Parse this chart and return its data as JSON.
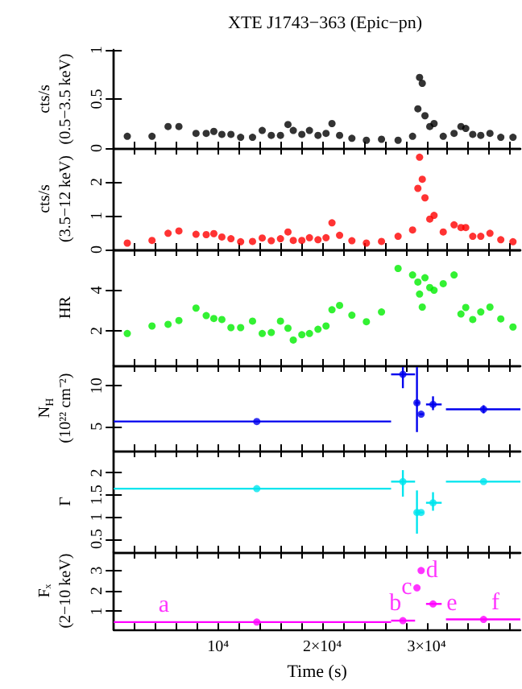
{
  "chart_data": [
    {
      "type": "scatter",
      "title": "XTE J1743−363 (Epic−pn)",
      "ylabel": "cts/s\n(0.5−3.5 keV)",
      "color": "#000000",
      "marker": "circle",
      "tick_labels": "y",
      "x": [
        1300,
        3670,
        5210,
        6250,
        7890,
        8870,
        9600,
        10370,
        11240,
        12170,
        13310,
        14240,
        15110,
        15990,
        16710,
        17220,
        18040,
        18770,
        19590,
        20360,
        20930,
        21660,
        22840,
        24230,
        25680,
        27270,
        28660,
        29170,
        29330,
        29590,
        29850,
        30310,
        30720,
        31600,
        32640,
        33300,
        33760,
        34430,
        35200,
        36080,
        37120,
        38290
      ],
      "values": [
        0.12,
        0.12,
        0.22,
        0.22,
        0.15,
        0.15,
        0.17,
        0.14,
        0.14,
        0.11,
        0.11,
        0.18,
        0.13,
        0.13,
        0.24,
        0.18,
        0.14,
        0.18,
        0.13,
        0.15,
        0.25,
        0.13,
        0.1,
        0.08,
        0.09,
        0.08,
        0.12,
        0.4,
        0.72,
        0.66,
        0.33,
        0.22,
        0.25,
        0.12,
        0.15,
        0.22,
        0.2,
        0.14,
        0.13,
        0.15,
        0.11,
        0.11
      ],
      "xlim": [
        0,
        39000
      ],
      "xticks": [
        {
          "value": 2000,
          "label": null
        },
        {
          "value": 4000,
          "label": null
        },
        {
          "value": 6000,
          "label": null
        },
        {
          "value": 8000,
          "label": null
        },
        {
          "value": 10000,
          "label": null
        },
        {
          "value": 12000,
          "label": null
        },
        {
          "value": 14000,
          "label": null
        },
        {
          "value": 16000,
          "label": null
        },
        {
          "value": 18000,
          "label": null
        },
        {
          "value": 20000,
          "label": null
        },
        {
          "value": 22000,
          "label": null
        },
        {
          "value": 24000,
          "label": null
        },
        {
          "value": 26000,
          "label": null
        },
        {
          "value": 28000,
          "label": null
        },
        {
          "value": 30000,
          "label": null
        },
        {
          "value": 32000,
          "label": null
        },
        {
          "value": 34000,
          "label": null
        },
        {
          "value": 36000,
          "label": null
        },
        {
          "value": 38000,
          "label": null
        }
      ],
      "ylim": [
        0,
        1
      ],
      "yticks": [
        0,
        0.5,
        1
      ]
    },
    {
      "type": "scatter",
      "ylabel": "cts/s\n(3.5−12 keV)",
      "color": "#ff0000",
      "marker": "circle",
      "tick_labels": "y",
      "x": [
        1300,
        3670,
        5210,
        6250,
        7890,
        8870,
        9600,
        10370,
        11240,
        12170,
        13310,
        14240,
        15110,
        15990,
        16710,
        17220,
        18040,
        18770,
        19590,
        20360,
        20930,
        21660,
        22840,
        24230,
        25680,
        27270,
        28660,
        29170,
        29330,
        29590,
        29850,
        30310,
        30720,
        31600,
        32640,
        33300,
        33760,
        34430,
        35200,
        36080,
        37120,
        38290
      ],
      "values": [
        0.19,
        0.27,
        0.48,
        0.55,
        0.45,
        0.44,
        0.47,
        0.37,
        0.32,
        0.23,
        0.24,
        0.34,
        0.26,
        0.32,
        0.52,
        0.27,
        0.27,
        0.35,
        0.29,
        0.35,
        0.79,
        0.42,
        0.26,
        0.19,
        0.24,
        0.39,
        0.58,
        1.81,
        2.73,
        2.08,
        1.53,
        0.9,
        1.01,
        0.52,
        0.73,
        0.65,
        0.65,
        0.39,
        0.39,
        0.48,
        0.29,
        0.23
      ],
      "xlim": [
        0,
        39000
      ],
      "xticks": [
        {
          "value": 2000,
          "label": null
        },
        {
          "value": 4000,
          "label": null
        },
        {
          "value": 6000,
          "label": null
        },
        {
          "value": 8000,
          "label": null
        },
        {
          "value": 10000,
          "label": null
        },
        {
          "value": 12000,
          "label": null
        },
        {
          "value": 14000,
          "label": null
        },
        {
          "value": 16000,
          "label": null
        },
        {
          "value": 18000,
          "label": null
        },
        {
          "value": 20000,
          "label": null
        },
        {
          "value": 22000,
          "label": null
        },
        {
          "value": 24000,
          "label": null
        },
        {
          "value": 26000,
          "label": null
        },
        {
          "value": 28000,
          "label": null
        },
        {
          "value": 30000,
          "label": null
        },
        {
          "value": 32000,
          "label": null
        },
        {
          "value": 34000,
          "label": null
        },
        {
          "value": 36000,
          "label": null
        },
        {
          "value": 38000,
          "label": null
        }
      ],
      "ylim": [
        0,
        3
      ],
      "yticks": [
        0,
        1,
        2
      ]
    },
    {
      "type": "scatter",
      "ylabel": "HR",
      "color": "#00ee00",
      "marker": "circle",
      "tick_labels": "y",
      "x": [
        1300,
        3670,
        5210,
        6250,
        7890,
        8870,
        9600,
        10370,
        11240,
        12170,
        13310,
        14240,
        15110,
        15990,
        16710,
        17220,
        18040,
        18770,
        19590,
        20360,
        20930,
        21660,
        22840,
        24230,
        25680,
        27270,
        28660,
        29170,
        29330,
        29590,
        29850,
        30310,
        30720,
        31600,
        32640,
        33300,
        33760,
        34430,
        35200,
        36080,
        37120,
        38290
      ],
      "values": [
        1.87,
        2.24,
        2.32,
        2.51,
        3.12,
        2.75,
        2.61,
        2.56,
        2.16,
        2.16,
        2.48,
        1.87,
        1.92,
        2.48,
        2.13,
        1.55,
        1.81,
        1.87,
        2.08,
        2.24,
        3.04,
        3.25,
        2.77,
        2.45,
        2.93,
        5.07,
        4.75,
        4.4,
        3.81,
        3.17,
        4.61,
        4.13,
        4.0,
        4.32,
        4.75,
        2.83,
        3.15,
        2.56,
        2.93,
        3.17,
        2.59,
        2.19
      ],
      "xlim": [
        0,
        39000
      ],
      "xticks": [
        {
          "value": 2000,
          "label": null
        },
        {
          "value": 4000,
          "label": null
        },
        {
          "value": 6000,
          "label": null
        },
        {
          "value": 8000,
          "label": null
        },
        {
          "value": 10000,
          "label": null
        },
        {
          "value": 12000,
          "label": null
        },
        {
          "value": 14000,
          "label": null
        },
        {
          "value": 16000,
          "label": null
        },
        {
          "value": 18000,
          "label": null
        },
        {
          "value": 20000,
          "label": null
        },
        {
          "value": 22000,
          "label": null
        },
        {
          "value": 24000,
          "label": null
        },
        {
          "value": 26000,
          "label": null
        },
        {
          "value": 28000,
          "label": null
        },
        {
          "value": 30000,
          "label": null
        },
        {
          "value": 32000,
          "label": null
        },
        {
          "value": 34000,
          "label": null
        },
        {
          "value": 36000,
          "label": null
        },
        {
          "value": 38000,
          "label": null
        }
      ],
      "ylim": [
        0.3,
        6
      ],
      "yticks": [
        2,
        4
      ]
    },
    {
      "type": "scatter",
      "ylabel": "N$_{H}$\n(10²² cm⁻²)",
      "color": "#0000ee",
      "marker": "circle",
      "tick_labels": "y",
      "x": [
        13720,
        27730,
        29080,
        29480,
        30620,
        35470
      ],
      "values": [
        5.6,
        11.4,
        7.9,
        6.5,
        7.7,
        7.1
      ],
      "xerrors": [
        [
          0,
          26600
        ],
        [
          26600,
          28900
        ],
        [
          28900,
          29300
        ],
        [
          29300,
          29700
        ],
        [
          29950,
          31450
        ],
        [
          31860,
          39000
        ]
      ],
      "errors": [
        null,
        [
          9.7,
          12.3
        ],
        [
          4.3,
          12.3
        ],
        null,
        [
          7.0,
          8.7
        ],
        [
          6.6,
          7.6
        ]
      ],
      "xlim": [
        0,
        39000
      ],
      "xticks": [
        {
          "value": 2000,
          "label": null
        },
        {
          "value": 4000,
          "label": null
        },
        {
          "value": 6000,
          "label": null
        },
        {
          "value": 8000,
          "label": null
        },
        {
          "value": 10000,
          "label": null
        },
        {
          "value": 12000,
          "label": null
        },
        {
          "value": 14000,
          "label": null
        },
        {
          "value": 16000,
          "label": null
        },
        {
          "value": 18000,
          "label": null
        },
        {
          "value": 20000,
          "label": null
        },
        {
          "value": 22000,
          "label": null
        },
        {
          "value": 24000,
          "label": null
        },
        {
          "value": 26000,
          "label": null
        },
        {
          "value": 28000,
          "label": null
        },
        {
          "value": 30000,
          "label": null
        },
        {
          "value": 32000,
          "label": null
        },
        {
          "value": 34000,
          "label": null
        },
        {
          "value": 36000,
          "label": null
        },
        {
          "value": 38000,
          "label": null
        }
      ],
      "ylim": [
        2,
        12.5
      ],
      "yticks": [
        5,
        10
      ]
    },
    {
      "type": "scatter",
      "ylabel": "Γ",
      "color": "#00e5ee",
      "marker": "circle",
      "tick_labels": "y",
      "x": [
        13720,
        27730,
        29080,
        29480,
        30620,
        35470
      ],
      "values": [
        1.64,
        1.8,
        1.1,
        1.1,
        1.32,
        1.8
      ],
      "xerrors": [
        [
          0,
          26600
        ],
        [
          26600,
          28900
        ],
        [
          28900,
          29300
        ],
        [
          29300,
          29700
        ],
        [
          29950,
          31450
        ],
        [
          31860,
          39000
        ]
      ],
      "errors": [
        null,
        [
          1.46,
          2.06
        ],
        [
          0.62,
          1.6
        ],
        null,
        [
          1.14,
          1.56
        ],
        null
      ],
      "xlim": [
        0,
        39000
      ],
      "xticks": [
        {
          "value": 2000,
          "label": null
        },
        {
          "value": 4000,
          "label": null
        },
        {
          "value": 6000,
          "label": null
        },
        {
          "value": 8000,
          "label": null
        },
        {
          "value": 10000,
          "label": null
        },
        {
          "value": 12000,
          "label": null
        },
        {
          "value": 14000,
          "label": null
        },
        {
          "value": 16000,
          "label": null
        },
        {
          "value": 18000,
          "label": null
        },
        {
          "value": 20000,
          "label": null
        },
        {
          "value": 22000,
          "label": null
        },
        {
          "value": 24000,
          "label": null
        },
        {
          "value": 26000,
          "label": null
        },
        {
          "value": 28000,
          "label": null
        },
        {
          "value": 30000,
          "label": null
        },
        {
          "value": 32000,
          "label": null
        },
        {
          "value": 34000,
          "label": null
        },
        {
          "value": 36000,
          "label": null
        },
        {
          "value": 38000,
          "label": null
        }
      ],
      "ylim": [
        0.2,
        2.5
      ],
      "yticks": [
        0.5,
        1,
        1.5,
        2
      ]
    },
    {
      "type": "scatter",
      "ylabel": "Fₓ\n(2−10 keV)",
      "xlabel": "Time (s)",
      "color": "#ff00ff",
      "marker": "circle",
      "x": [
        13720,
        27730,
        29080,
        29480,
        30620,
        35470
      ],
      "values": [
        0.47,
        0.54,
        2.15,
        3.0,
        1.36,
        0.6
      ],
      "xerrors": [
        [
          0,
          26600
        ],
        [
          26600,
          28900
        ],
        null,
        null,
        [
          29950,
          31450
        ],
        [
          31860,
          39000
        ]
      ],
      "annotations": [
        {
          "text": "a",
          "x": 4810,
          "y": 0.47
        },
        {
          "text": "b",
          "x": 27000,
          "y": 0.54
        },
        {
          "text": "c",
          "x": 29080,
          "y": 2.15
        },
        {
          "text": "d",
          "x": 29480,
          "y": 3.0
        },
        {
          "text": "e",
          "x": 31450,
          "y": 1.36
        },
        {
          "text": "f",
          "x": 36600,
          "y": 0.6
        }
      ],
      "xlim": [
        0,
        39000
      ],
      "xticks": [
        {
          "value": 2000,
          "label": null
        },
        {
          "value": 4000,
          "label": null
        },
        {
          "value": 6000,
          "label": null
        },
        {
          "value": 8000,
          "label": null
        },
        {
          "value": 10000,
          "label": "10⁴"
        },
        {
          "value": 12000,
          "label": null
        },
        {
          "value": 14000,
          "label": null
        },
        {
          "value": 16000,
          "label": null
        },
        {
          "value": 18000,
          "label": null
        },
        {
          "value": 20000,
          "label": "2×10⁴"
        },
        {
          "value": 22000,
          "label": null
        },
        {
          "value": 24000,
          "label": null
        },
        {
          "value": 26000,
          "label": null
        },
        {
          "value": 28000,
          "label": null
        },
        {
          "value": 30000,
          "label": "3×10⁴"
        },
        {
          "value": 32000,
          "label": null
        },
        {
          "value": 34000,
          "label": null
        },
        {
          "value": 36000,
          "label": null
        },
        {
          "value": 38000,
          "label": null
        }
      ],
      "ylim": [
        0.1,
        3.9
      ],
      "yticks": [
        1,
        2,
        3
      ]
    }
  ]
}
